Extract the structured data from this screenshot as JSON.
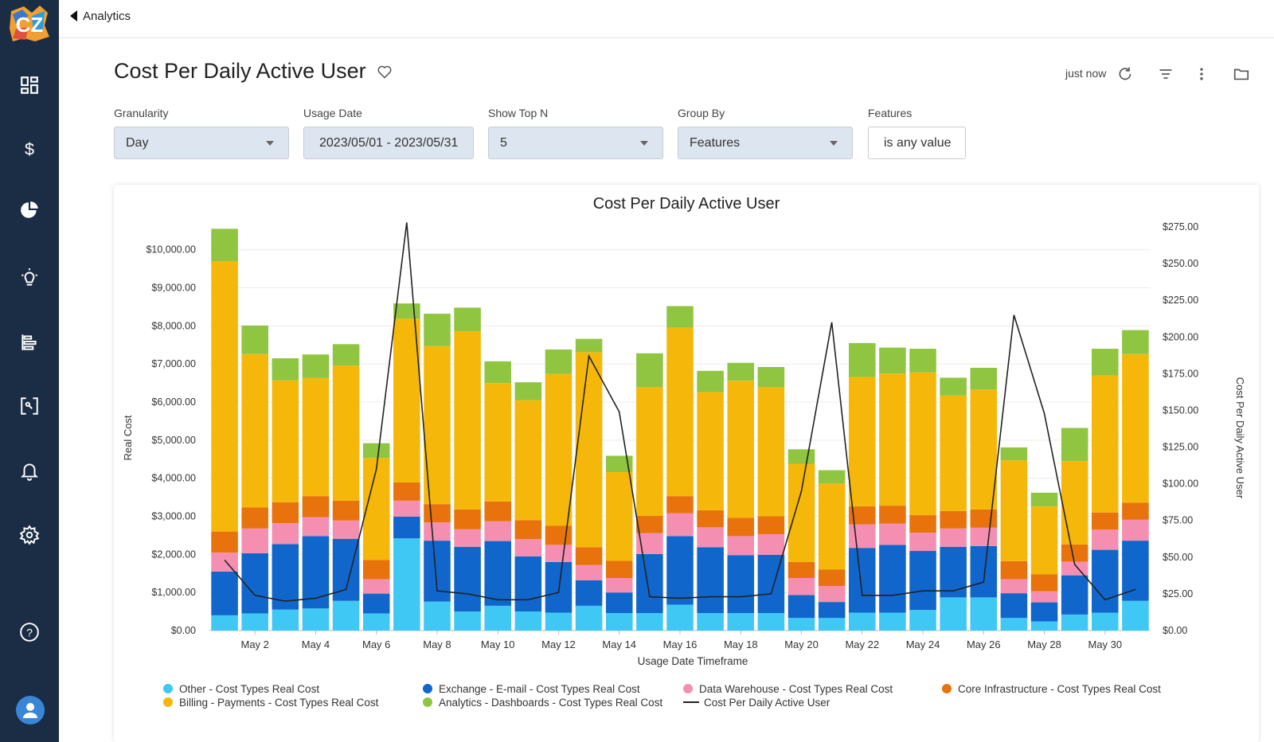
{
  "sidebar": {
    "logo_text": "CZ",
    "items": [
      {
        "name": "dashboard-icon"
      },
      {
        "name": "dollar-icon"
      },
      {
        "name": "pie-chart-icon"
      },
      {
        "name": "lightbulb-icon"
      },
      {
        "name": "bar-list-icon"
      },
      {
        "name": "scan-icon"
      },
      {
        "name": "bell-icon"
      },
      {
        "name": "gear-icon"
      },
      {
        "name": "help-icon"
      }
    ]
  },
  "topbar": {
    "back_label": "Analytics"
  },
  "header": {
    "title": "Cost Per Daily Active User",
    "refresh_status": "just now"
  },
  "filters": {
    "granularity": {
      "label": "Granularity",
      "value": "Day"
    },
    "usage_date": {
      "label": "Usage Date",
      "value": "2023/05/01 - 2023/05/31"
    },
    "show_top_n": {
      "label": "Show Top N",
      "value": "5"
    },
    "group_by": {
      "label": "Group By",
      "value": "Features"
    },
    "features": {
      "label": "Features",
      "value": "is any value"
    }
  },
  "colors": {
    "other": "#3fc8f4",
    "exchange": "#1166cc",
    "warehouse": "#f48fb1",
    "core": "#e8720c",
    "billing": "#f5b80a",
    "analytics": "#8fc540",
    "line": "#222222"
  },
  "chart_data": {
    "type": "bar",
    "title": "Cost Per Daily Active User",
    "xlabel": "Usage Date Timeframe",
    "ylabel": "Real Cost",
    "y2label": "Cost Per Daily Active User",
    "ylim": [
      0,
      10600
    ],
    "y2lim": [
      0,
      275
    ],
    "yticks": [
      "$0.00",
      "$1,000.00",
      "$2,000.00",
      "$3,000.00",
      "$4,000.00",
      "$5,000.00",
      "$6,000.00",
      "$7,000.00",
      "$8,000.00",
      "$9,000.00",
      "$10,000.00"
    ],
    "y2ticks": [
      "$0.00",
      "$25.00",
      "$50.00",
      "$75.00",
      "$100.00",
      "$125.00",
      "$150.00",
      "$175.00",
      "$200.00",
      "$225.00",
      "$250.00",
      "$275.00"
    ],
    "xticks": [
      "May 2",
      "May 4",
      "May 6",
      "May 8",
      "May 10",
      "May 12",
      "May 14",
      "May 16",
      "May 18",
      "May 20",
      "May 22",
      "May 24",
      "May 26",
      "May 28",
      "May 30"
    ],
    "categories": [
      "May 1",
      "May 2",
      "May 3",
      "May 4",
      "May 5",
      "May 6",
      "May 7",
      "May 8",
      "May 9",
      "May 10",
      "May 11",
      "May 12",
      "May 13",
      "May 14",
      "May 15",
      "May 16",
      "May 17",
      "May 18",
      "May 19",
      "May 20",
      "May 21",
      "May 22",
      "May 23",
      "May 24",
      "May 25",
      "May 26",
      "May 27",
      "May 28",
      "May 29",
      "May 30",
      "May 31"
    ],
    "series": [
      {
        "name": "Other - Cost Types Real Cost",
        "color_key": "other",
        "values": [
          400,
          450,
          550,
          580,
          780,
          450,
          2420,
          760,
          500,
          650,
          500,
          470,
          650,
          460,
          460,
          680,
          460,
          460,
          460,
          330,
          330,
          470,
          470,
          540,
          870,
          870,
          330,
          240,
          420,
          470,
          780
        ]
      },
      {
        "name": "Exchange - E-mail - Cost Types Real Cost",
        "color_key": "exchange",
        "values": [
          1150,
          1580,
          1720,
          1900,
          1630,
          520,
          570,
          1600,
          1700,
          1700,
          1450,
          1330,
          670,
          540,
          1550,
          1800,
          1730,
          1520,
          1530,
          600,
          420,
          1700,
          1780,
          1550,
          1330,
          1350,
          650,
          500,
          1030,
          1650,
          1580
        ]
      },
      {
        "name": "Data Warehouse - Cost Types Real Cost",
        "color_key": "warehouse",
        "values": [
          500,
          650,
          550,
          500,
          480,
          380,
          420,
          480,
          460,
          520,
          450,
          450,
          400,
          380,
          550,
          600,
          520,
          500,
          540,
          450,
          420,
          620,
          560,
          480,
          480,
          480,
          370,
          290,
          360,
          530,
          550
        ]
      },
      {
        "name": "Core Infrastructure - Cost Types Real Cost",
        "color_key": "core",
        "values": [
          550,
          550,
          550,
          550,
          520,
          500,
          480,
          480,
          520,
          520,
          500,
          500,
          470,
          450,
          450,
          450,
          450,
          480,
          470,
          420,
          430,
          470,
          470,
          460,
          460,
          480,
          470,
          450,
          450,
          450,
          450
        ]
      },
      {
        "name": "Billing - Payments - Cost Types Real Cost",
        "color_key": "billing",
        "values": [
          7100,
          4030,
          3200,
          3100,
          3550,
          2680,
          4300,
          4150,
          4680,
          3110,
          3150,
          3990,
          5120,
          2330,
          3380,
          4420,
          3100,
          3600,
          3390,
          2580,
          2260,
          3400,
          3470,
          3750,
          3030,
          3150,
          2650,
          1780,
          2190,
          3600,
          3900
        ]
      },
      {
        "name": "Analytics - Dashboards - Cost Types Real Cost",
        "color_key": "analytics",
        "values": [
          850,
          750,
          580,
          620,
          560,
          390,
          400,
          850,
          620,
          570,
          470,
          640,
          350,
          430,
          890,
          570,
          560,
          470,
          530,
          380,
          350,
          890,
          680,
          620,
          470,
          570,
          340,
          360,
          870,
          700,
          630
        ]
      }
    ],
    "line_series": {
      "name": "Cost Per Daily Active User",
      "color_key": "line",
      "values": [
        48,
        24,
        20,
        22,
        28,
        110,
        278,
        27,
        25,
        21,
        21,
        26,
        187,
        149,
        23,
        22,
        23,
        23,
        25,
        95,
        210,
        24,
        24,
        27,
        27,
        33,
        215,
        148,
        45,
        21,
        28
      ]
    },
    "legend": [
      {
        "label": "Other - Cost Types Real Cost",
        "color_key": "other",
        "kind": "dot"
      },
      {
        "label": "Exchange - E-mail - Cost Types Real Cost",
        "color_key": "exchange",
        "kind": "dot"
      },
      {
        "label": "Data Warehouse - Cost Types Real Cost",
        "color_key": "warehouse",
        "kind": "dot"
      },
      {
        "label": "Core Infrastructure - Cost Types Real Cost",
        "color_key": "core",
        "kind": "dot"
      },
      {
        "label": "Billing - Payments - Cost Types Real Cost",
        "color_key": "billing",
        "kind": "dot"
      },
      {
        "label": "Analytics - Dashboards - Cost Types Real Cost",
        "color_key": "analytics",
        "kind": "dot"
      },
      {
        "label": "Cost Per Daily Active User",
        "color_key": "line",
        "kind": "line"
      }
    ]
  }
}
